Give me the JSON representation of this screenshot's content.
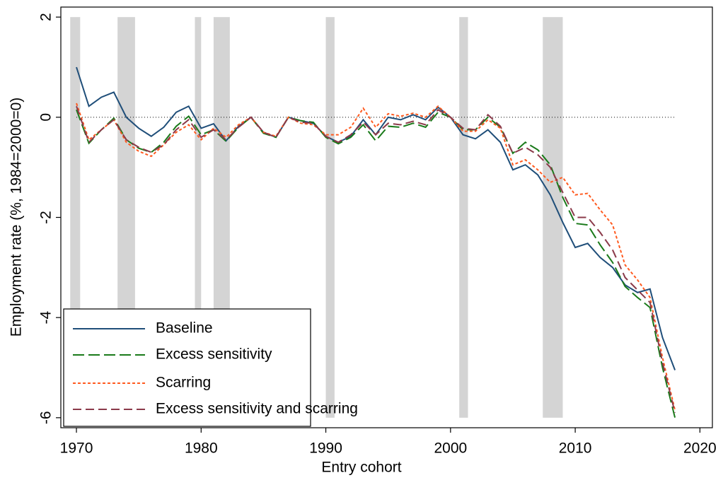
{
  "chart_data": {
    "type": "line",
    "xlabel": "Entry cohort",
    "ylabel": "Employment rate (%, 1984=2000=0)",
    "x": [
      1970,
      1971,
      1972,
      1973,
      1974,
      1975,
      1976,
      1977,
      1978,
      1979,
      1980,
      1981,
      1982,
      1983,
      1984,
      1985,
      1986,
      1987,
      1988,
      1989,
      1990,
      1991,
      1992,
      1993,
      1994,
      1995,
      1996,
      1997,
      1998,
      1999,
      2000,
      2001,
      2002,
      2003,
      2004,
      2005,
      2006,
      2007,
      2008,
      2009,
      2010,
      2011,
      2012,
      2013,
      2014,
      2015,
      2016,
      2017,
      2018
    ],
    "series": [
      {
        "name": "Baseline",
        "color": "#1f4e79",
        "dash": "none",
        "values": [
          1.0,
          0.22,
          0.4,
          0.5,
          0.0,
          -0.22,
          -0.38,
          -0.2,
          0.1,
          0.22,
          -0.22,
          -0.13,
          -0.47,
          -0.18,
          0.0,
          -0.3,
          -0.4,
          0.0,
          -0.07,
          -0.12,
          -0.38,
          -0.5,
          -0.38,
          -0.05,
          -0.35,
          0.0,
          -0.05,
          0.05,
          -0.05,
          0.2,
          0.0,
          -0.35,
          -0.43,
          -0.25,
          -0.5,
          -1.05,
          -0.95,
          -1.15,
          -1.55,
          -2.1,
          -2.6,
          -2.52,
          -2.8,
          -3.0,
          -3.35,
          -3.5,
          -3.43,
          -4.4,
          -5.05
        ]
      },
      {
        "name": "Excess sensitivity",
        "color": "#1a7a1a",
        "dash": "16 6",
        "values": [
          0.15,
          -0.52,
          -0.25,
          -0.02,
          -0.45,
          -0.62,
          -0.7,
          -0.5,
          -0.18,
          0.02,
          -0.35,
          -0.25,
          -0.48,
          -0.2,
          0.0,
          -0.32,
          -0.4,
          0.0,
          -0.07,
          -0.1,
          -0.4,
          -0.53,
          -0.4,
          -0.15,
          -0.47,
          -0.18,
          -0.2,
          -0.12,
          -0.2,
          0.1,
          0.0,
          -0.25,
          -0.25,
          0.0,
          -0.2,
          -0.72,
          -0.5,
          -0.65,
          -0.95,
          -1.6,
          -2.12,
          -2.15,
          -2.55,
          -2.9,
          -3.38,
          -3.6,
          -3.8,
          -5.0,
          -6.0
        ]
      },
      {
        "name": "Scarring",
        "color": "#ff5a1f",
        "dash": "4 3",
        "values": [
          0.28,
          -0.45,
          -0.25,
          -0.05,
          -0.5,
          -0.68,
          -0.78,
          -0.55,
          -0.3,
          -0.15,
          -0.45,
          -0.22,
          -0.4,
          -0.15,
          0.0,
          -0.3,
          -0.38,
          0.0,
          -0.12,
          -0.15,
          -0.35,
          -0.35,
          -0.2,
          0.18,
          -0.2,
          0.07,
          0.02,
          0.08,
          0.0,
          0.22,
          0.0,
          -0.28,
          -0.28,
          -0.05,
          -0.22,
          -0.95,
          -0.85,
          -1.05,
          -1.3,
          -1.2,
          -1.55,
          -1.52,
          -1.85,
          -2.15,
          -2.95,
          -3.25,
          -3.6,
          -4.8,
          -5.85
        ]
      },
      {
        "name": "Excess sensitivity and scarring",
        "color": "#8b3a4a",
        "dash": "12 6",
        "values": [
          0.22,
          -0.5,
          -0.25,
          -0.05,
          -0.45,
          -0.6,
          -0.7,
          -0.55,
          -0.25,
          -0.05,
          -0.4,
          -0.25,
          -0.45,
          -0.2,
          0.0,
          -0.3,
          -0.4,
          0.0,
          -0.1,
          -0.12,
          -0.38,
          -0.5,
          -0.35,
          -0.1,
          -0.35,
          -0.12,
          -0.15,
          -0.08,
          -0.15,
          0.15,
          0.0,
          -0.22,
          -0.25,
          0.05,
          -0.18,
          -0.72,
          -0.6,
          -0.75,
          -1.0,
          -1.5,
          -2.0,
          -2.0,
          -2.3,
          -2.65,
          -3.2,
          -3.45,
          -3.7,
          -4.9,
          -5.9
        ]
      }
    ],
    "shaded_periods": [
      [
        1969.5,
        1970.3
      ],
      [
        1973.3,
        1974.7
      ],
      [
        1979.5,
        1980.0
      ],
      [
        1981.0,
        1982.3
      ],
      [
        1990.0,
        1990.7
      ],
      [
        2000.7,
        2001.4
      ],
      [
        2007.4,
        2009.0
      ]
    ],
    "shade_color": "#d4d4d4",
    "reference_line": 0,
    "xlim": [
      1968.75,
      2021
    ],
    "xticks": [
      1970,
      1980,
      1990,
      2000,
      2010,
      2020
    ],
    "ylim": [
      -6.2,
      2.2
    ],
    "yticks": [
      -6,
      -4,
      -2,
      0,
      2
    ],
    "legend": "lower left"
  }
}
